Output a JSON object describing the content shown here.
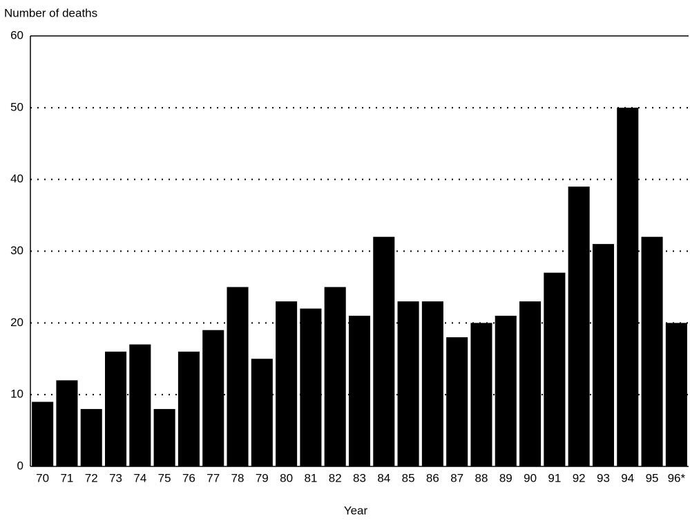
{
  "chart_data": {
    "type": "bar",
    "y_label": "Number of deaths",
    "x_label": "Year",
    "categories": [
      "70",
      "71",
      "72",
      "73",
      "74",
      "75",
      "76",
      "77",
      "78",
      "79",
      "80",
      "81",
      "82",
      "83",
      "84",
      "85",
      "86",
      "87",
      "88",
      "89",
      "90",
      "91",
      "92",
      "93",
      "94",
      "95",
      "96*"
    ],
    "values": [
      9,
      12,
      8,
      16,
      17,
      8,
      16,
      19,
      25,
      15,
      23,
      22,
      25,
      21,
      32,
      23,
      23,
      18,
      20,
      21,
      23,
      27,
      39,
      31,
      50,
      32,
      20
    ],
    "color": "#000000",
    "ylim": [
      0,
      60
    ],
    "yticks": [
      0,
      10,
      20,
      30,
      40,
      50,
      60
    ],
    "grid": true
  }
}
